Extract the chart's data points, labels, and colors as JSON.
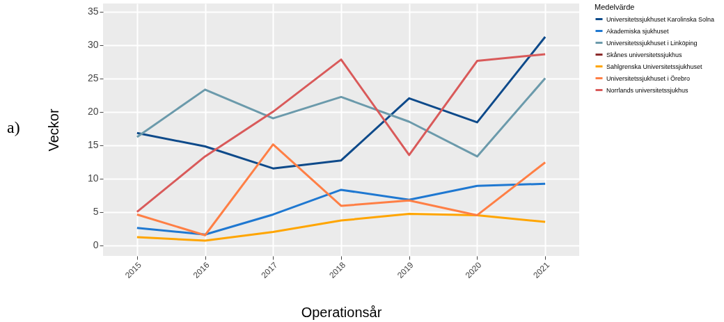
{
  "chart_data": {
    "type": "line",
    "xlabel": "Operationsår",
    "ylabel": "Veckor",
    "legend_title": "Medelvärde",
    "annotations": [
      "a)"
    ],
    "categories": [
      "2015",
      "2016",
      "2017",
      "2018",
      "2019",
      "2020",
      "2021"
    ],
    "series": [
      {
        "name": "Universitetssjukhuset Karolinska Solna",
        "color": "#0e4a8a",
        "values": [
          16.8,
          14.8,
          11.5,
          12.7,
          22.0,
          18.4,
          31.2
        ]
      },
      {
        "name": "Akademiska sjukhuset",
        "color": "#1f78d1",
        "values": [
          2.6,
          1.6,
          4.6,
          8.3,
          6.8,
          8.9,
          9.2
        ]
      },
      {
        "name": "Universitetssjukhuset i Linköping",
        "color": "#6b9aab",
        "values": [
          16.2,
          23.3,
          19.0,
          22.2,
          18.5,
          13.3,
          25.0
        ]
      },
      {
        "name": "Skånes universitetssjukhus",
        "color": "#8b2a2a",
        "values": [
          null,
          null,
          null,
          null,
          null,
          null,
          null
        ]
      },
      {
        "name": "Sahlgrenska Universitetssjukhuset",
        "color": "#ffa500",
        "values": [
          1.2,
          0.7,
          2.0,
          3.7,
          4.7,
          4.5,
          3.5
        ]
      },
      {
        "name": "Universitetssjukhuset i Örebro",
        "color": "#ff7f45",
        "values": [
          4.6,
          1.5,
          15.1,
          5.9,
          6.7,
          4.5,
          12.4
        ]
      },
      {
        "name": "Norrlands universitetssjukhus",
        "color": "#d95a5a",
        "values": [
          5.0,
          13.3,
          20.0,
          27.8,
          13.5,
          27.6,
          28.6
        ]
      }
    ],
    "ylim": [
      -1.6,
      36.2
    ],
    "yticks": [
      0,
      5,
      10,
      15,
      20,
      25,
      30,
      35
    ],
    "grid": true,
    "legend": "right",
    "line_style": "solid"
  }
}
